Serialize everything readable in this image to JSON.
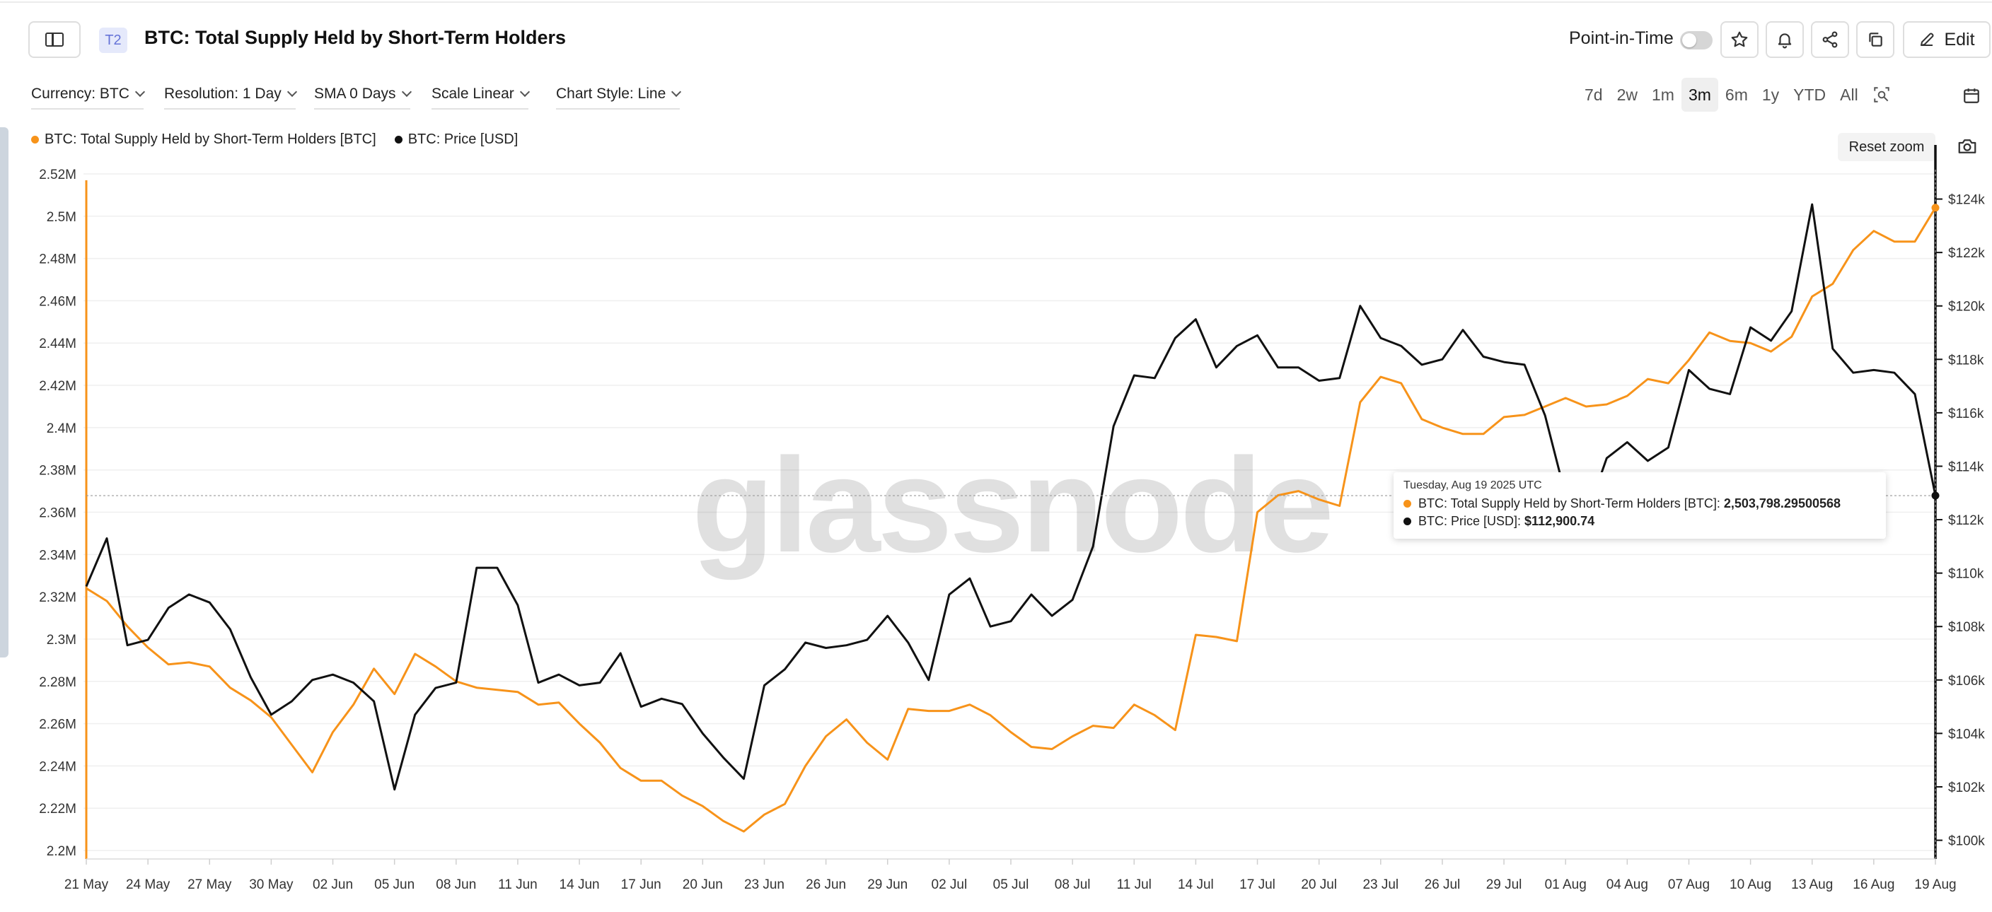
{
  "header": {
    "tier_badge": "T2",
    "title": "BTC: Total Supply Held by Short-Term Holders",
    "point_in_time_label": "Point-in-Time",
    "edit_label": "Edit"
  },
  "options": {
    "currency": "Currency: BTC",
    "resolution": "Resolution: 1 Day",
    "sma": "SMA 0 Days",
    "scale": "Scale Linear",
    "chart_style": "Chart Style: Line"
  },
  "ranges": [
    "7d",
    "2w",
    "1m",
    "3m",
    "6m",
    "1y",
    "YTD",
    "All"
  ],
  "active_range": "3m",
  "reset_zoom_label": "Reset zoom",
  "watermark": "glassnode",
  "colors": {
    "supply": "#f7931a",
    "price": "#111111"
  },
  "tooltip": {
    "date": "Tuesday, Aug 19 2025 UTC",
    "supply_label": "BTC: Total Supply Held by Short-Term Holders [BTC]:",
    "supply_value": "2,503,798.29500568",
    "price_label": "BTC: Price [USD]:",
    "price_value": "$112,900.74"
  },
  "chart_data": {
    "type": "line",
    "title": "BTC: Total Supply Held by Short-Term Holders",
    "x_tick_labels": [
      "21 May",
      "24 May",
      "27 May",
      "30 May",
      "02 Jun",
      "05 Jun",
      "08 Jun",
      "11 Jun",
      "14 Jun",
      "17 Jun",
      "20 Jun",
      "23 Jun",
      "26 Jun",
      "29 Jun",
      "02 Jul",
      "05 Jul",
      "08 Jul",
      "11 Jul",
      "14 Jul",
      "17 Jul",
      "20 Jul",
      "23 Jul",
      "26 Jul",
      "29 Jul",
      "01 Aug",
      "04 Aug",
      "07 Aug",
      "10 Aug",
      "13 Aug",
      "16 Aug",
      "19 Aug"
    ],
    "x_range": [
      "2025-05-21",
      "2025-08-19"
    ],
    "left_axis": {
      "ticks": [
        "2.2M",
        "2.22M",
        "2.24M",
        "2.26M",
        "2.28M",
        "2.3M",
        "2.32M",
        "2.34M",
        "2.36M",
        "2.38M",
        "2.4M",
        "2.42M",
        "2.44M",
        "2.46M",
        "2.48M",
        "2.5M",
        "2.52M"
      ],
      "range": [
        2196000,
        2522000
      ]
    },
    "right_axis": {
      "ticks": [
        "$100k",
        "$102k",
        "$104k",
        "$106k",
        "$108k",
        "$110k",
        "$112k",
        "$114k",
        "$116k",
        "$118k",
        "$120k",
        "$122k",
        "$124k"
      ],
      "range": [
        99300,
        125100
      ]
    },
    "legend_position": "top-left",
    "grid": true,
    "series": [
      {
        "name": "BTC: Total Supply Held by Short-Term Holders [BTC]",
        "axis": "left",
        "values": [
          2324000,
          2318000,
          2306000,
          2296000,
          2288000,
          2289000,
          2287000,
          2277000,
          2271000,
          2263000,
          2250000,
          2237000,
          2256000,
          2269000,
          2286000,
          2274000,
          2293000,
          2287000,
          2280000,
          2277000,
          2276000,
          2275000,
          2269000,
          2270000,
          2260000,
          2251000,
          2239000,
          2233000,
          2233000,
          2226000,
          2221000,
          2214000,
          2209000,
          2217000,
          2222000,
          2240000,
          2254000,
          2262000,
          2251000,
          2243000,
          2267000,
          2266000,
          2266000,
          2269000,
          2264000,
          2256000,
          2249000,
          2248000,
          2254000,
          2259000,
          2258000,
          2269000,
          2264000,
          2257000,
          2302000,
          2301000,
          2299000,
          2360000,
          2368000,
          2370000,
          2366000,
          2363000,
          2412000,
          2424000,
          2421000,
          2404000,
          2400000,
          2397000,
          2397000,
          2405000,
          2406000,
          2410000,
          2414000,
          2410000,
          2411000,
          2415000,
          2423000,
          2421000,
          2432000,
          2445000,
          2441000,
          2440000,
          2436000,
          2443000,
          2462000,
          2468000,
          2484000,
          2493000,
          2488000,
          2488000,
          2504000
        ]
      },
      {
        "name": "BTC: Price [USD]",
        "axis": "right",
        "values": [
          109500,
          111300,
          107300,
          107500,
          108700,
          109200,
          108900,
          107900,
          106100,
          104700,
          105200,
          106000,
          106200,
          105900,
          105200,
          101900,
          104700,
          105700,
          105900,
          110200,
          110200,
          108800,
          105900,
          106200,
          105800,
          105900,
          107000,
          105000,
          105300,
          105100,
          104000,
          103100,
          102300,
          105800,
          106400,
          107400,
          107200,
          107300,
          107500,
          108400,
          107400,
          106000,
          109200,
          109800,
          108000,
          108200,
          109200,
          108400,
          109000,
          111000,
          115500,
          117400,
          117300,
          118800,
          119500,
          117700,
          118500,
          118900,
          117700,
          117700,
          117200,
          117300,
          120000,
          118800,
          118500,
          117800,
          118000,
          119100,
          118100,
          117900,
          117800,
          115900,
          112900,
          112100,
          114300,
          114900,
          114200,
          114700,
          117600,
          116900,
          116700,
          119200,
          118700,
          119800,
          123800,
          118400,
          117500,
          117600,
          117500,
          116700,
          112900
        ]
      }
    ]
  }
}
